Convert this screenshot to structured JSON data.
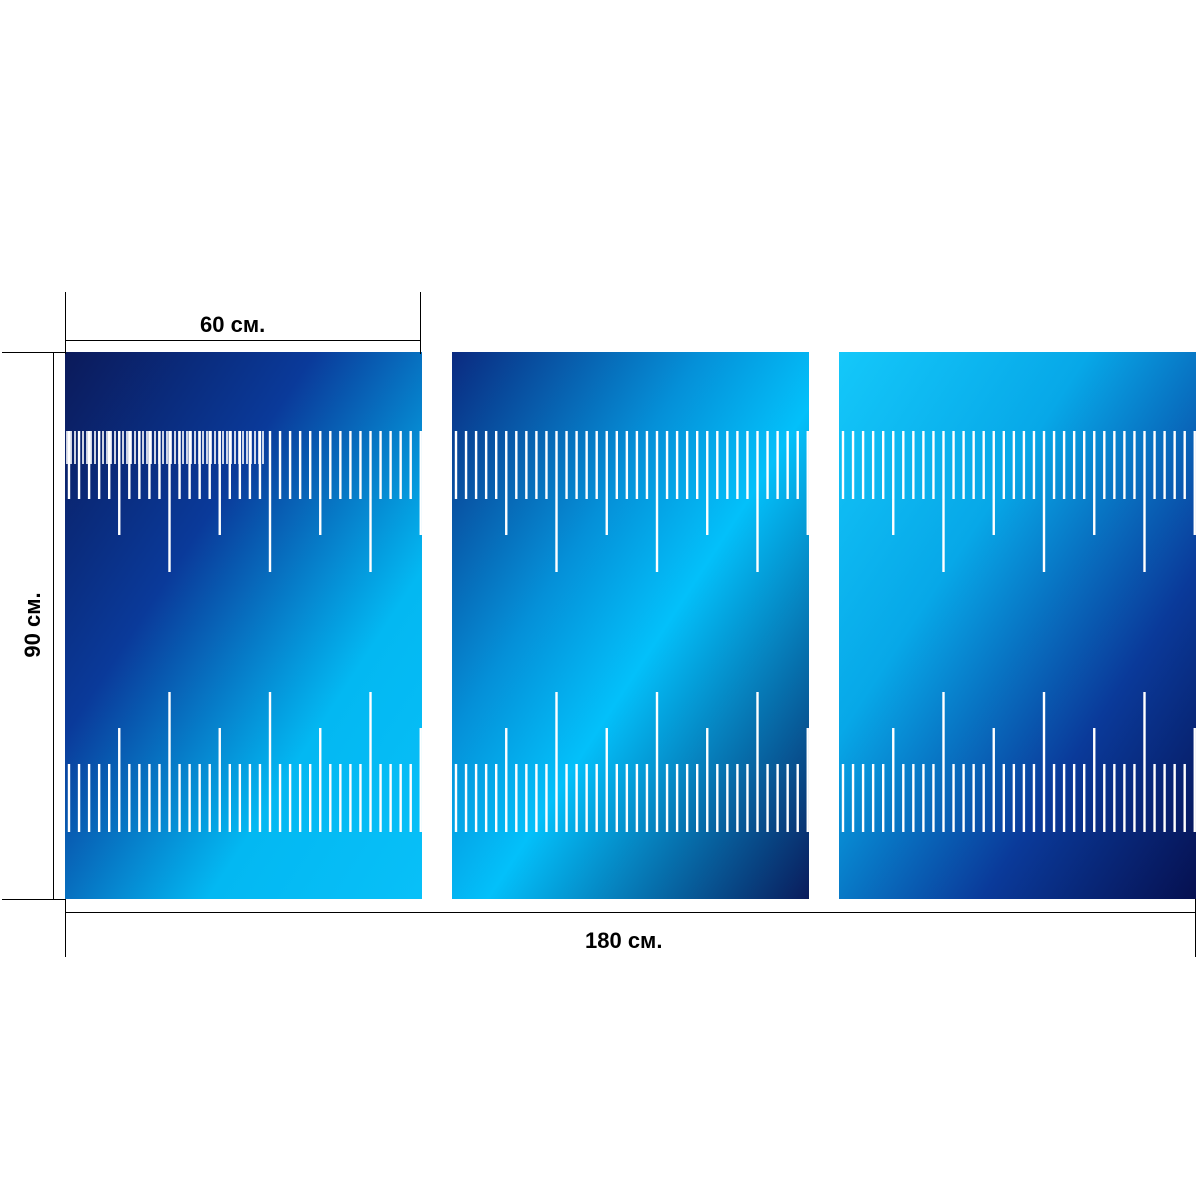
{
  "dimensions": {
    "panel_width": "60 см.",
    "height": "90 см.",
    "total_width": "180 см."
  },
  "panels": [
    {
      "name": "left",
      "gradient": [
        "#0b1a5a",
        "#0a3a9a",
        "#03b8f2",
        "#08c0f8"
      ]
    },
    {
      "name": "center",
      "gradient": [
        "#0a2a80",
        "#0590d8",
        "#03c0fa",
        "#0a1c5c"
      ]
    },
    {
      "name": "right",
      "gradient": [
        "#14c8fa",
        "#07a8e8",
        "#0a3a9a",
        "#061050"
      ]
    }
  ],
  "colors": {
    "tick": "#ffffff",
    "dimension_line": "#000000",
    "background": "#ffffff"
  }
}
